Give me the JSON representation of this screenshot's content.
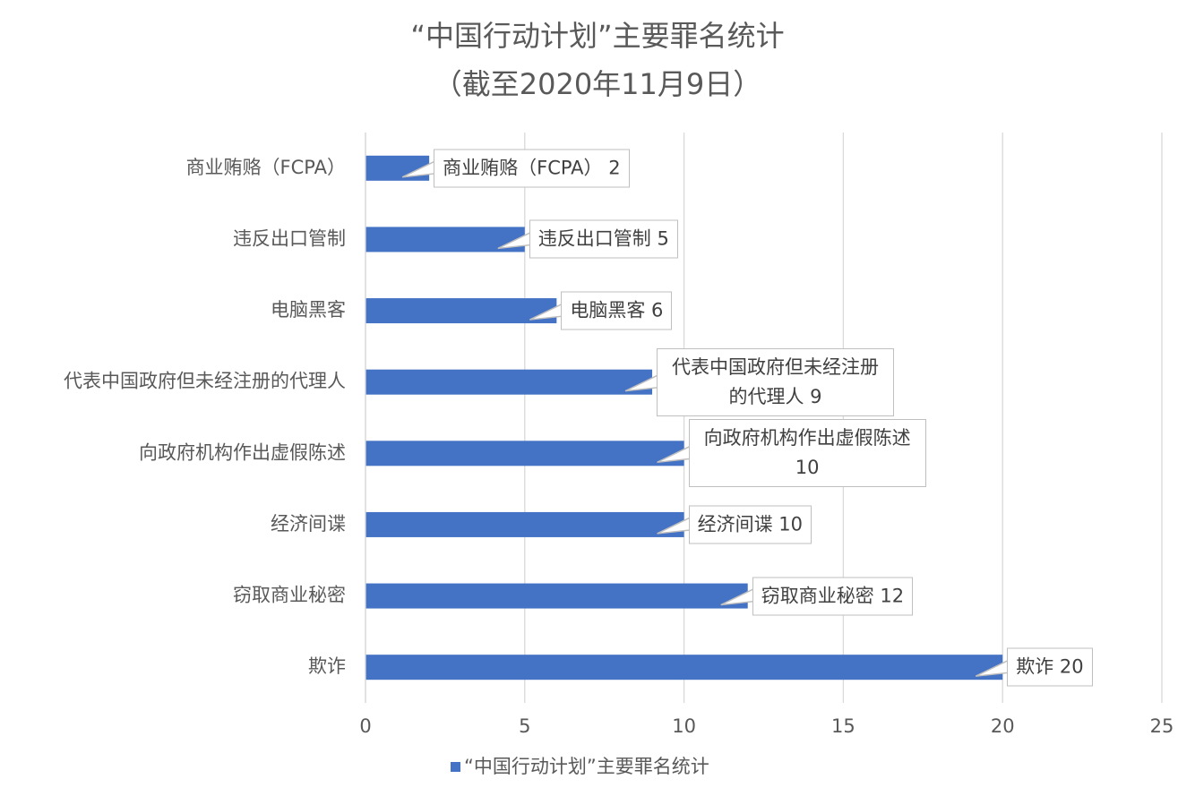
{
  "chart_data": {
    "type": "bar",
    "orientation": "horizontal",
    "title": "“中国行动计划”主要罪名统计",
    "subtitle": "（截至2020年11月9日）",
    "categories": [
      "商业贿赂（FCPA）",
      "违反出口管制",
      "电脑黑客",
      "代表中国政府但未经注册的代理人",
      "向政府机构作出虚假陈述",
      "经济间谍",
      "窃取商业秘密",
      "欺诈"
    ],
    "series": [
      {
        "name": "“中国行动计划”主要罪名统计",
        "color": "#4472c4",
        "values": [
          2,
          5,
          6,
          9,
          10,
          10,
          12,
          20
        ],
        "value_labels": [
          "商业贿赂（FCPA） 2",
          "违反出口管制 5",
          "电脑黑客 6",
          "代表中国政府但未经注册的代理人 9",
          "向政府机构作出虚假陈述 10",
          "经济间谍 10",
          "窃取商业秘密 12",
          "欺诈 20"
        ]
      }
    ],
    "xlim": [
      0,
      25
    ],
    "xticks": [
      0,
      5,
      10,
      15,
      20,
      25
    ],
    "grid": true
  }
}
